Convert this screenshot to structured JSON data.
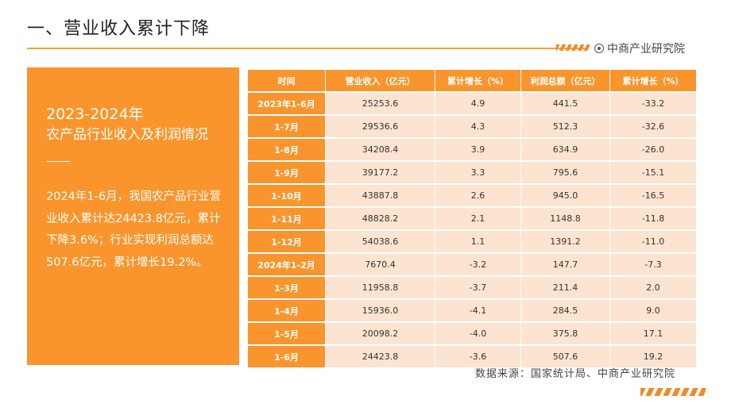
{
  "title": "一、营业收入累计下降",
  "brand": "中商产业研究院",
  "panel": {
    "year": "2023-2024年",
    "subtitle": "农产品行业收入及利润情况",
    "body": "2024年1-6月，我国农产品行业营业收入累计达24423.8亿元，累计下降3.6%；行业实现利润总额达507.6亿元，累计增长19.2%。"
  },
  "table": {
    "headers": [
      "时间",
      "营业收入（亿元）",
      "累计增长（%）",
      "利润总额（亿元）",
      "累计增长（%）"
    ],
    "rows": [
      [
        "2023年1-6月",
        "25253.6",
        "4.9",
        "441.5",
        "-33.2"
      ],
      [
        "1-7月",
        "29536.6",
        "4.3",
        "512.3",
        "-32.6"
      ],
      [
        "1-8月",
        "34208.4",
        "3.9",
        "634.9",
        "-26.0"
      ],
      [
        "1-9月",
        "39177.2",
        "3.3",
        "795.6",
        "-15.1"
      ],
      [
        "1-10月",
        "43887.8",
        "2.6",
        "945.0",
        "-16.5"
      ],
      [
        "1-11月",
        "48828.2",
        "2.1",
        "1148.8",
        "-11.8"
      ],
      [
        "1-12月",
        "54038.6",
        "1.1",
        "1391.2",
        "-11.0"
      ],
      [
        "2024年1-2月",
        "7670.4",
        "-3.2",
        "147.7",
        "-7.3"
      ],
      [
        "1-3月",
        "11958.8",
        "-3.7",
        "211.4",
        "2.0"
      ],
      [
        "1-4月",
        "15936.0",
        "-4.1",
        "284.5",
        "9.0"
      ],
      [
        "1-5月",
        "20098.2",
        "-4.0",
        "375.8",
        "17.1"
      ],
      [
        "1-6月",
        "24423.8",
        "-3.6",
        "507.6",
        "19.2"
      ]
    ]
  },
  "source": "数据来源：国家统计局、中商产业研究院",
  "colors": {
    "accent": "#f9952c",
    "row_bg": "#fde4d0"
  },
  "icons": {
    "brand": "circle-dot-icon"
  }
}
